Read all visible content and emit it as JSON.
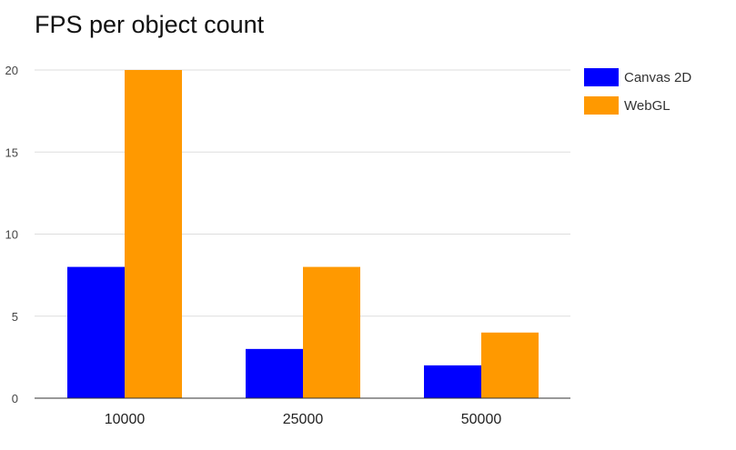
{
  "chart_data": {
    "type": "bar",
    "title": "FPS per object count",
    "xlabel": "",
    "ylabel": "",
    "categories": [
      "10000",
      "25000",
      "50000"
    ],
    "series": [
      {
        "name": "Canvas 2D",
        "color": "#0000ff",
        "values": [
          8,
          3,
          2
        ]
      },
      {
        "name": "WebGL",
        "color": "#ff9900",
        "values": [
          20,
          8,
          4
        ]
      }
    ],
    "ylim": [
      0,
      20
    ],
    "yticks": [
      0,
      5,
      10,
      15,
      20
    ],
    "grid": true,
    "legend": "right"
  }
}
